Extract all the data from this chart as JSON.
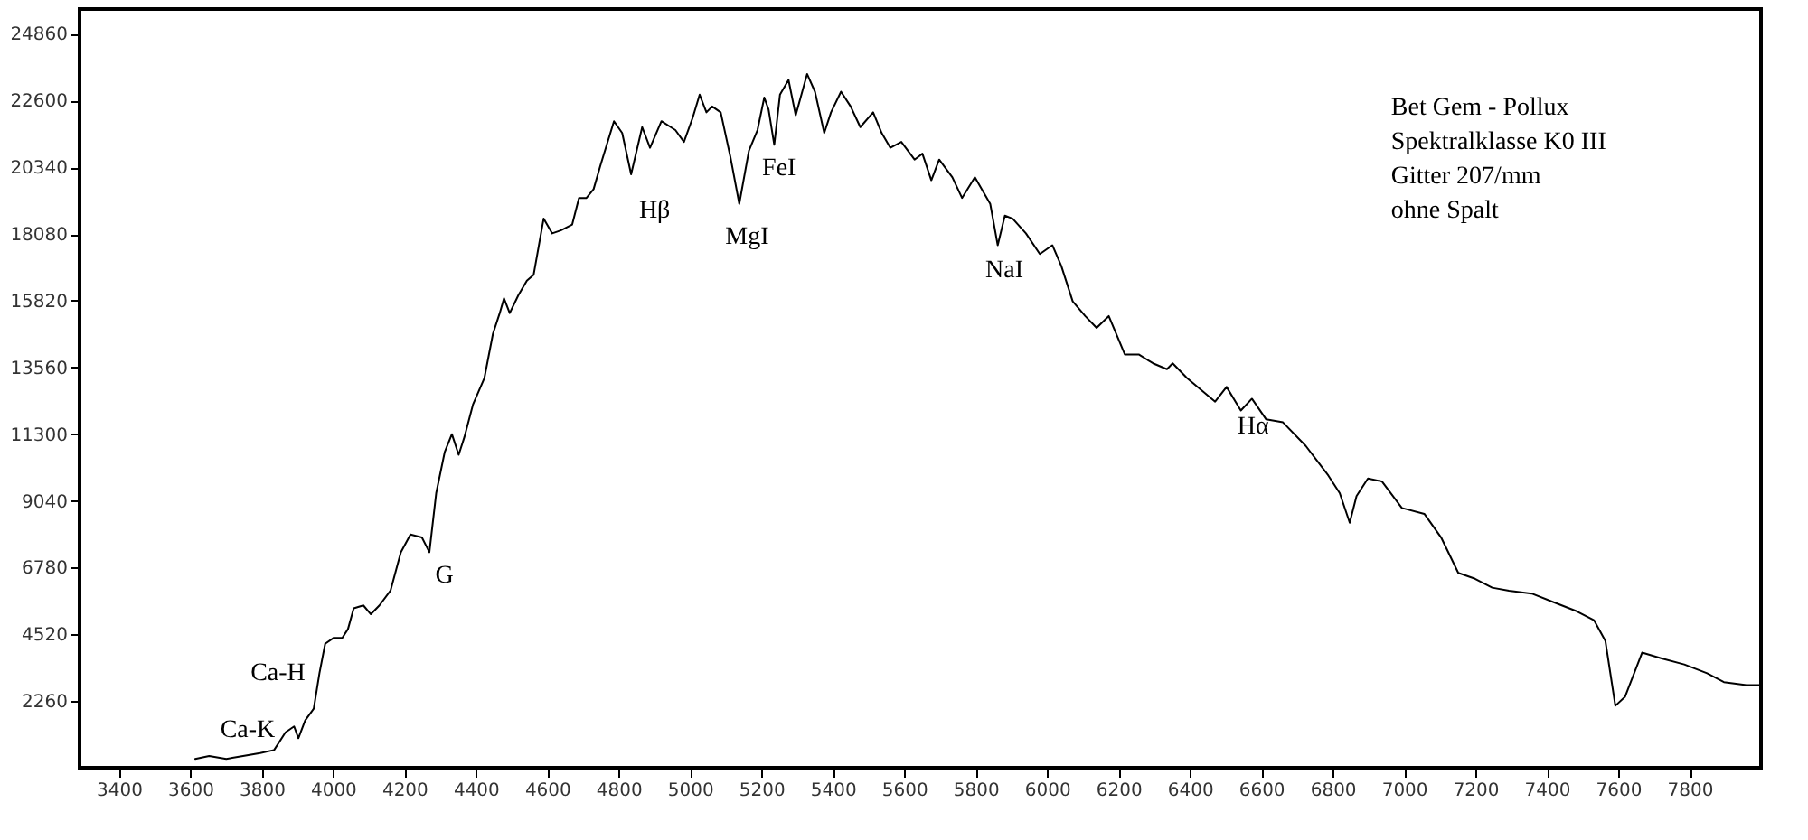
{
  "chart_data": {
    "type": "line",
    "x": [
      3614,
      3653,
      3701,
      3748,
      3796,
      3835,
      3867,
      3891,
      3903,
      3922,
      3946,
      3962,
      3978,
      4002,
      4026,
      4042,
      4058,
      4085,
      4106,
      4130,
      4161,
      4190,
      4217,
      4249,
      4270,
      4289,
      4313,
      4333,
      4352,
      4368,
      4392,
      4424,
      4448,
      4467,
      4479,
      4495,
      4519,
      4543,
      4562,
      4590,
      4614,
      4638,
      4670,
      4689,
      4710,
      4730,
      4749,
      4787,
      4810,
      4835,
      4866,
      4888,
      4920,
      4959,
      4983,
      5007,
      5027,
      5046,
      5062,
      5086,
      5113,
      5138,
      5165,
      5189,
      5208,
      5220,
      5236,
      5252,
      5276,
      5296,
      5328,
      5350,
      5376,
      5395,
      5423,
      5450,
      5477,
      5513,
      5537,
      5561,
      5592,
      5629,
      5651,
      5676,
      5698,
      5735,
      5762,
      5798,
      5841,
      5862,
      5882,
      5904,
      5941,
      5980,
      6015,
      6040,
      6072,
      6107,
      6139,
      6173,
      6218,
      6257,
      6297,
      6336,
      6352,
      6392,
      6471,
      6503,
      6543,
      6574,
      6614,
      6661,
      6725,
      6788,
      6820,
      6848,
      6867,
      6899,
      6938,
      6994,
      7057,
      7104,
      7152,
      7199,
      7247,
      7294,
      7358,
      7421,
      7484,
      7532,
      7564,
      7592,
      7619,
      7667,
      7722,
      7785,
      7849,
      7896,
      7959,
      7995
    ],
    "series": [
      {
        "color": "#000000",
        "values": [
          300,
          400,
          300,
          400,
          500,
          600,
          1200,
          1400,
          1000,
          1600,
          2000,
          3200,
          4200,
          4400,
          4400,
          4700,
          5400,
          5500,
          5200,
          5500,
          6000,
          7300,
          7900,
          7800,
          7300,
          9300,
          10700,
          11300,
          10600,
          11200,
          12300,
          13200,
          14700,
          15400,
          15900,
          15400,
          16000,
          16500,
          16700,
          18600,
          18100,
          18200,
          18400,
          19300,
          19300,
          19600,
          20400,
          21900,
          21500,
          20100,
          21700,
          21000,
          21900,
          21600,
          21200,
          22000,
          22800,
          22200,
          22400,
          22200,
          20700,
          19100,
          20900,
          21600,
          22700,
          22300,
          21100,
          22800,
          23300,
          22100,
          23500,
          22900,
          21500,
          22200,
          22900,
          22400,
          21700,
          22200,
          21500,
          21000,
          21200,
          20600,
          20800,
          19900,
          20600,
          20000,
          19300,
          20000,
          19100,
          17700,
          18700,
          18600,
          18100,
          17400,
          17700,
          17000,
          15800,
          15300,
          14900,
          15300,
          14000,
          14000,
          13700,
          13500,
          13700,
          13200,
          12400,
          12900,
          12100,
          12500,
          11800,
          11700,
          10900,
          9900,
          9300,
          8300,
          9200,
          9800,
          9700,
          8800,
          8600,
          7800,
          6600,
          6400,
          6100,
          6000,
          5900,
          5600,
          5300,
          5000,
          4300,
          2100,
          2400,
          3900,
          3700,
          3500,
          3200,
          2900,
          2800,
          2800
        ]
      }
    ],
    "xlim": [
      3290,
      8000
    ],
    "xticks": [
      3400,
      3600,
      3800,
      4000,
      4200,
      4400,
      4600,
      4800,
      5000,
      5200,
      5400,
      5600,
      5800,
      6000,
      6200,
      6400,
      6600,
      6800,
      7000,
      7200,
      7400,
      7600,
      7800
    ],
    "ylim": [
      0,
      25700
    ],
    "yticks": [
      2260,
      4520,
      6780,
      9040,
      11300,
      13560,
      15820,
      18080,
      20340,
      22600,
      24860
    ],
    "grid": false,
    "annotations": [
      "Ca-K",
      "Ca-H",
      "G",
      "Hβ",
      "MgI",
      "FeI",
      "NaI",
      "Hα",
      "Bet Gem - Pollux",
      "Spektralklasse K0 III",
      "Gitter 207/mm",
      "ohne Spalt"
    ]
  }
}
